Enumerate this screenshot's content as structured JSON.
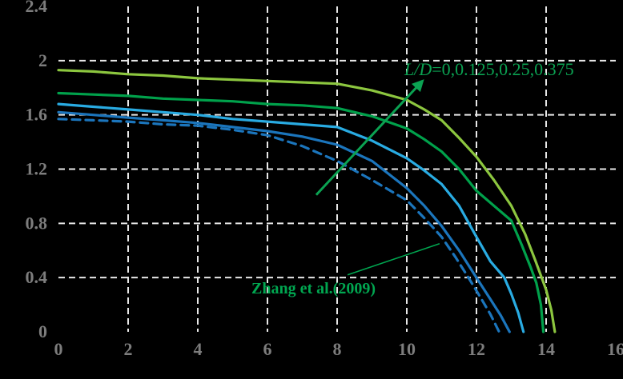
{
  "page": {
    "background_color": "#000000",
    "tick_label_color": "#7d7d7d",
    "grid_color": "#e8e8e8"
  },
  "chart_data": {
    "type": "line",
    "title": "",
    "xlabel": "",
    "ylabel": "",
    "xlim": [
      0,
      16
    ],
    "ylim": [
      0,
      2.4
    ],
    "x_ticks": [
      "0",
      "2",
      "4",
      "6",
      "8",
      "10",
      "12",
      "14",
      "16"
    ],
    "x_tick_values": [
      0,
      2,
      4,
      6,
      8,
      10,
      12,
      14,
      16
    ],
    "y_ticks": [
      "0",
      "0.4",
      "0.8",
      "1.2",
      "1.6",
      "2",
      "2.4"
    ],
    "y_tick_values": [
      0,
      0.4,
      0.8,
      1.2,
      1.6,
      2,
      2.4
    ],
    "grid": {
      "style": "dashed",
      "color": "#e8e8e8",
      "x_lines": [
        2,
        4,
        6,
        8,
        10,
        12,
        14
      ],
      "y_lines": [
        0.4,
        0.8,
        1.2,
        1.6,
        2
      ]
    },
    "legend_position": "none (curves identified by in-plot annotations)",
    "series": [
      {
        "name": "L/D=0.375",
        "color": "#8cc63f",
        "dash": false,
        "points": [
          [
            0,
            1.93
          ],
          [
            1,
            1.92
          ],
          [
            2,
            1.9
          ],
          [
            3,
            1.89
          ],
          [
            4,
            1.87
          ],
          [
            5,
            1.86
          ],
          [
            6,
            1.85
          ],
          [
            7,
            1.84
          ],
          [
            8,
            1.83
          ],
          [
            9,
            1.78
          ],
          [
            10,
            1.71
          ],
          [
            10.5,
            1.64
          ],
          [
            11,
            1.56
          ],
          [
            11.5,
            1.43
          ],
          [
            12,
            1.29
          ],
          [
            12.5,
            1.12
          ],
          [
            13,
            0.93
          ],
          [
            13.4,
            0.72
          ],
          [
            13.7,
            0.52
          ],
          [
            14,
            0.31
          ],
          [
            14.15,
            0.16
          ],
          [
            14.25,
            0
          ]
        ]
      },
      {
        "name": "L/D=0.25",
        "color": "#00a14b",
        "dash": false,
        "points": [
          [
            0,
            1.76
          ],
          [
            1,
            1.75
          ],
          [
            2,
            1.74
          ],
          [
            3,
            1.72
          ],
          [
            4,
            1.71
          ],
          [
            5,
            1.7
          ],
          [
            6,
            1.68
          ],
          [
            7,
            1.67
          ],
          [
            8,
            1.65
          ],
          [
            9,
            1.59
          ],
          [
            10,
            1.5
          ],
          [
            10.5,
            1.42
          ],
          [
            11,
            1.33
          ],
          [
            11.5,
            1.2
          ],
          [
            12,
            1.04
          ],
          [
            12.5,
            0.93
          ],
          [
            13,
            0.82
          ],
          [
            13.3,
            0.64
          ],
          [
            13.55,
            0.48
          ],
          [
            13.72,
            0.36
          ],
          [
            13.85,
            0.2
          ],
          [
            13.92,
            0
          ]
        ]
      },
      {
        "name": "L/D=0.125",
        "color": "#29abe2",
        "dash": false,
        "points": [
          [
            0,
            1.68
          ],
          [
            1,
            1.66
          ],
          [
            2,
            1.64
          ],
          [
            3,
            1.62
          ],
          [
            4,
            1.6
          ],
          [
            5,
            1.57
          ],
          [
            6,
            1.55
          ],
          [
            7,
            1.53
          ],
          [
            8,
            1.51
          ],
          [
            9,
            1.41
          ],
          [
            10,
            1.28
          ],
          [
            10.5,
            1.19
          ],
          [
            11,
            1.09
          ],
          [
            11.5,
            0.93
          ],
          [
            12,
            0.7
          ],
          [
            12.4,
            0.52
          ],
          [
            12.8,
            0.4
          ],
          [
            13,
            0.28
          ],
          [
            13.2,
            0.14
          ],
          [
            13.35,
            0
          ]
        ]
      },
      {
        "name": "L/D=0",
        "color": "#1b75bc",
        "dash": false,
        "points": [
          [
            0,
            1.62
          ],
          [
            1,
            1.6
          ],
          [
            2,
            1.58
          ],
          [
            3,
            1.56
          ],
          [
            4,
            1.54
          ],
          [
            5,
            1.51
          ],
          [
            6,
            1.48
          ],
          [
            7,
            1.44
          ],
          [
            8,
            1.38
          ],
          [
            9,
            1.26
          ],
          [
            10,
            1.06
          ],
          [
            10.5,
            0.93
          ],
          [
            11,
            0.78
          ],
          [
            11.5,
            0.6
          ],
          [
            12,
            0.4
          ],
          [
            12.4,
            0.24
          ],
          [
            12.7,
            0.12
          ],
          [
            12.95,
            0
          ]
        ]
      },
      {
        "name": "Zhang et al.(2009)",
        "color": "#1b75bc",
        "dash": true,
        "points": [
          [
            0,
            1.57
          ],
          [
            1,
            1.56
          ],
          [
            2,
            1.55
          ],
          [
            3,
            1.53
          ],
          [
            4,
            1.52
          ],
          [
            5,
            1.49
          ],
          [
            6,
            1.45
          ],
          [
            7,
            1.37
          ],
          [
            8,
            1.26
          ],
          [
            9,
            1.12
          ],
          [
            10,
            0.97
          ],
          [
            10.5,
            0.84
          ],
          [
            11,
            0.7
          ],
          [
            11.4,
            0.55
          ],
          [
            11.77,
            0.4
          ],
          [
            12.1,
            0.26
          ],
          [
            12.4,
            0.13
          ],
          [
            12.65,
            0
          ]
        ]
      }
    ],
    "annotations": {
      "ld_label": {
        "prefix": "L/D",
        "suffix": "=0,0.125,0.25,0.375",
        "color": "#0ba252"
      },
      "arrow": {
        "x1": 7.4,
        "y1": 1.01,
        "x2": 10.45,
        "y2": 1.85,
        "color": "#0ba252"
      },
      "zhang_label": {
        "text": "Zhang et al.(2009)",
        "color": "#00a650"
      },
      "leader_line": {
        "x1": 8.3,
        "y1": 0.42,
        "x2": 10.94,
        "y2": 0.65,
        "color": "#00a650"
      }
    }
  }
}
